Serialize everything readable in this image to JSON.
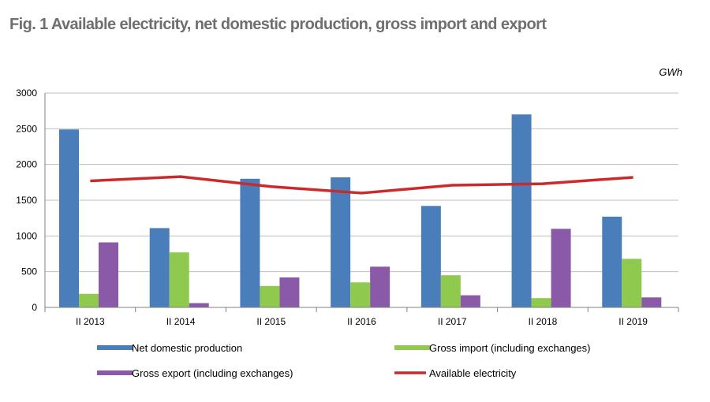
{
  "header": {
    "title": "Fig. 1 Available electricity, net domestic production, gross import and export",
    "unit": "GWh"
  },
  "colors": {
    "net_domestic_production": "#4a7ebb",
    "gross_import": "#8fca4f",
    "gross_export": "#8a5aa9",
    "available_electricity": "#cc2a2a",
    "grid": "#bfbfbf",
    "axis": "#808080"
  },
  "chart_data": {
    "type": "bar",
    "title": "Fig. 1 Available electricity, net domestic production, gross import and export",
    "unit": "GWh",
    "categories": [
      "II 2013",
      "II 2014",
      "II 2015",
      "II 2016",
      "II 2017",
      "II 2018",
      "II 2019"
    ],
    "ylim": [
      0,
      3000
    ],
    "yticks": [
      0,
      500,
      1000,
      1500,
      2000,
      2500,
      3000
    ],
    "grid": true,
    "legend_position": "bottom",
    "series": [
      {
        "name": "Net domestic production",
        "type": "bar",
        "values": [
          2490,
          1110,
          1800,
          1820,
          1420,
          2700,
          1270
        ]
      },
      {
        "name": "Gross import (including exchanges)",
        "type": "bar",
        "values": [
          190,
          770,
          300,
          350,
          450,
          130,
          680
        ]
      },
      {
        "name": "Gross export (including exchanges)",
        "type": "bar",
        "values": [
          910,
          60,
          420,
          570,
          170,
          1100,
          140
        ]
      },
      {
        "name": "Available electricity",
        "type": "line",
        "values": [
          1770,
          1830,
          1690,
          1600,
          1710,
          1730,
          1820
        ]
      }
    ]
  }
}
